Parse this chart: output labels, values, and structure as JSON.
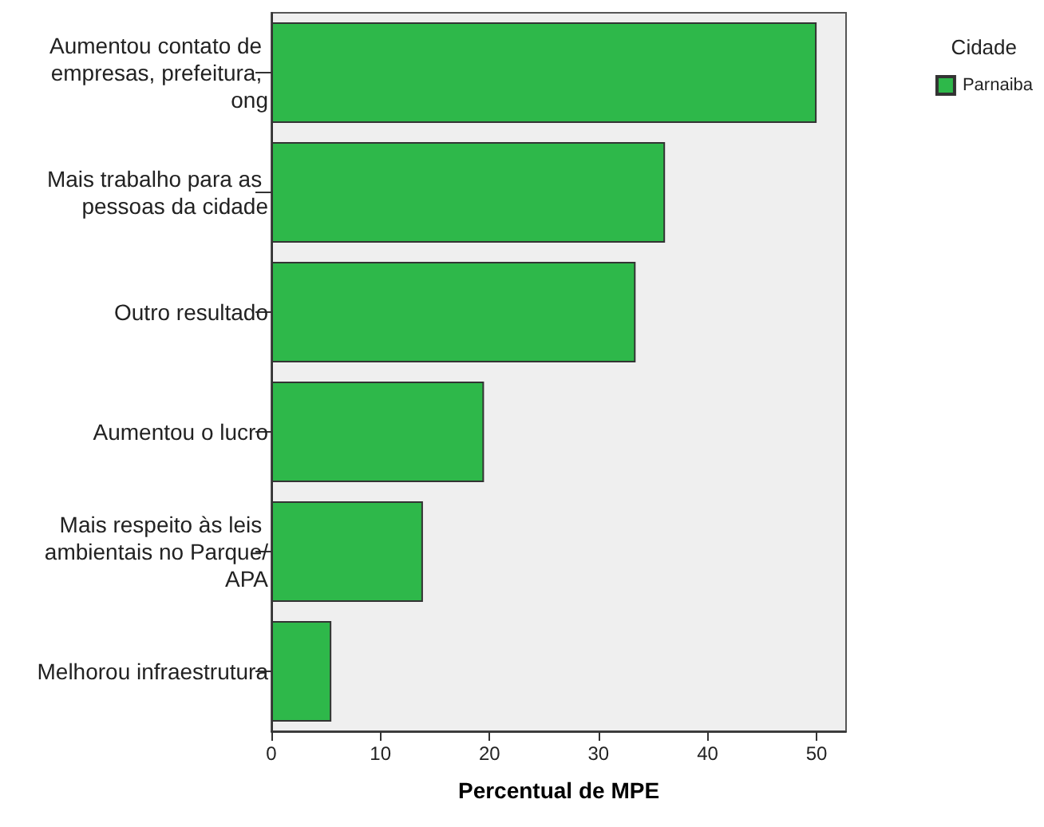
{
  "chart_data": {
    "type": "bar",
    "orientation": "horizontal",
    "xlabel": "Percentual de MPE",
    "legend_title": "Cidade",
    "legend": "top right",
    "categories": [
      "Aumentou contato de empresas, prefeitura, ong",
      "Mais trabalho para as pessoas da cidade",
      "Outro resultado",
      "Aumentou o lucro",
      "Mais respeito às leis ambientais no Parque/APA",
      "Melhorou infraestrutura"
    ],
    "series": [
      {
        "name": "Parnaiba",
        "color": "#2eb84a",
        "values": [
          50,
          36.1,
          33.4,
          19.5,
          13.9,
          5.5
        ]
      }
    ],
    "xlim": [
      0,
      52.7
    ],
    "xticks": [
      0,
      10,
      20,
      30,
      40,
      50
    ],
    "grid": false
  }
}
